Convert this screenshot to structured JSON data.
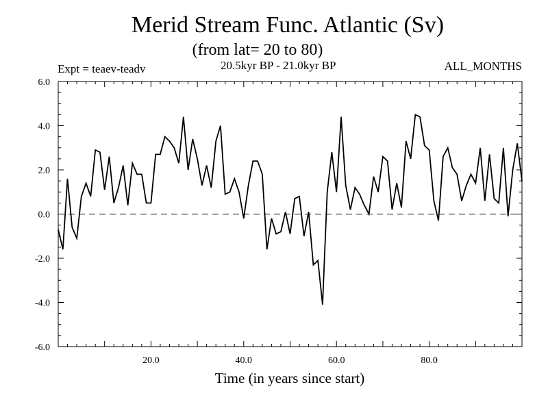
{
  "header": {
    "title": "Merid Stream Func. Atlantic (Sv)",
    "subtitle": "(from lat= 20 to 80)",
    "period": "20.5kyr BP - 21.0kyr BP",
    "experiment": "Expt = teaev-teadv",
    "months": "ALL_MONTHS"
  },
  "chart_data": {
    "type": "line",
    "title": "Merid Stream Func. Atlantic (Sv)",
    "subtitle": "(from lat= 20 to 80)",
    "xlabel": "Time (in years since start)",
    "ylabel": "",
    "xlim": [
      0,
      100
    ],
    "ylim": [
      -6,
      6
    ],
    "x_ticks": [
      20,
      40,
      60,
      80
    ],
    "x_tick_labels": [
      "20.0",
      "40.0",
      "60.0",
      "80.0"
    ],
    "y_ticks": [
      6,
      4,
      2,
      0,
      -2,
      -4,
      -6
    ],
    "y_tick_labels": [
      "6.0",
      "4.0",
      "2.0",
      "0.0",
      "-2.0",
      "-4.0",
      "-6.0"
    ],
    "reference_line": {
      "y": 0,
      "style": "dashed"
    },
    "series": [
      {
        "name": "Merid Stream Func.",
        "x": [
          0,
          1,
          2,
          3,
          4,
          5,
          6,
          7,
          8,
          9,
          10,
          11,
          12,
          13,
          14,
          15,
          16,
          17,
          18,
          19,
          20,
          21,
          22,
          23,
          24,
          25,
          26,
          27,
          28,
          29,
          30,
          31,
          32,
          33,
          34,
          35,
          36,
          37,
          38,
          39,
          40,
          41,
          42,
          43,
          44,
          45,
          46,
          47,
          48,
          49,
          50,
          51,
          52,
          53,
          54,
          55,
          56,
          57,
          58,
          59,
          60,
          61,
          62,
          63,
          64,
          65,
          66,
          67,
          68,
          69,
          70,
          71,
          72,
          73,
          74,
          75,
          76,
          77,
          78,
          79,
          80,
          81,
          82,
          83,
          84,
          85,
          86,
          87,
          88,
          89,
          90,
          91,
          92,
          93,
          94,
          95,
          96,
          97,
          98,
          99,
          100
        ],
        "values": [
          -0.7,
          -1.6,
          1.6,
          -0.6,
          -1.1,
          0.8,
          1.4,
          0.8,
          2.9,
          2.8,
          1.1,
          2.6,
          0.5,
          1.2,
          2.2,
          0.4,
          2.3,
          1.8,
          1.8,
          0.5,
          0.5,
          2.7,
          2.7,
          3.5,
          3.3,
          3.0,
          2.3,
          4.4,
          2.0,
          3.4,
          2.5,
          1.3,
          2.2,
          1.2,
          3.3,
          4.0,
          0.9,
          1.0,
          1.6,
          1.0,
          -0.2,
          1.3,
          2.4,
          2.4,
          1.8,
          -1.6,
          -0.2,
          -0.9,
          -0.8,
          0.1,
          -0.9,
          0.7,
          0.8,
          -1.0,
          0.1,
          -2.3,
          -2.1,
          -4.1,
          1.0,
          2.8,
          1.0,
          4.4,
          1.3,
          0.2,
          1.2,
          0.9,
          0.4,
          0.0,
          1.7,
          1.0,
          2.6,
          2.4,
          0.2,
          1.4,
          0.3,
          3.3,
          2.5,
          4.5,
          4.4,
          3.1,
          2.9,
          0.6,
          -0.3,
          2.6,
          3.0,
          2.1,
          1.8,
          0.6,
          1.3,
          1.8,
          1.4,
          3.0,
          0.6,
          2.7,
          0.7,
          0.5,
          3.0,
          -0.1,
          2.0,
          3.2,
          1.5
        ]
      }
    ]
  }
}
